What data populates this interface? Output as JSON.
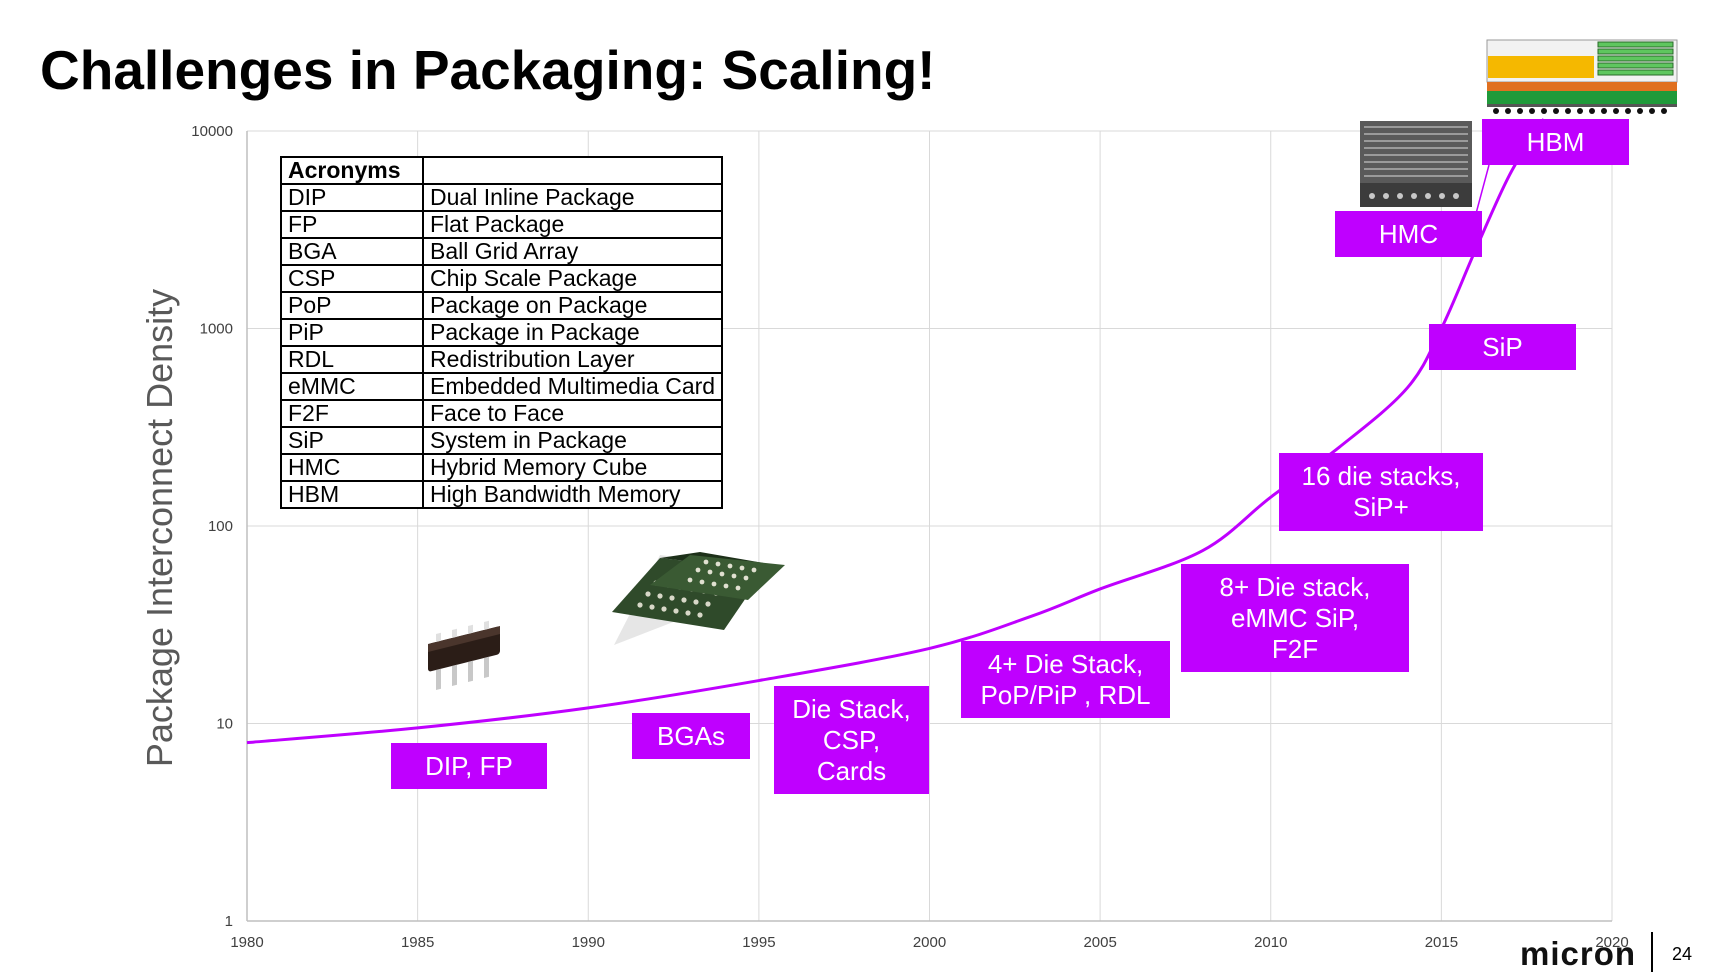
{
  "slide": {
    "title": "Challenges in Packaging: Scaling!",
    "page_number": "24",
    "logo": "micron"
  },
  "chart_data": {
    "type": "line",
    "title": "",
    "xlabel": "",
    "ylabel": "Package Interconnect Density",
    "xlim": [
      1980,
      2020
    ],
    "ylim": [
      1,
      10000
    ],
    "y_scale": "log",
    "grid": true,
    "x_ticks": [
      "1980",
      "1985",
      "1990",
      "1995",
      "2000",
      "2005",
      "2010",
      "2015",
      "2020"
    ],
    "y_ticks": [
      "1",
      "10",
      "100",
      "1000",
      "10000"
    ],
    "series": [
      {
        "color": "#bf00ff",
        "x": [
          1980,
          1985,
          1990,
          1995,
          2000,
          2003,
          2005,
          2008,
          2010,
          2012,
          2014,
          2015,
          2016,
          2017,
          2018
        ],
        "y": [
          8,
          9.5,
          12,
          16.5,
          24,
          35,
          48,
          75,
          140,
          250,
          500,
          1000,
          2500,
          6000,
          14000
        ]
      }
    ],
    "annotations": [
      {
        "text": "DIP, FP",
        "x_anchor": 1984.3
      },
      {
        "text": "BGAs",
        "x_anchor": 1991.5
      },
      {
        "text": "Die Stack,\nCSP,\nCards",
        "x_anchor": 1996.5
      },
      {
        "text": "4+ Die Stack,\nPoP/PiP , RDL",
        "x_anchor": 2002.4
      },
      {
        "text": "8+ Die stack,\neMMC SiP,\nF2F",
        "x_anchor": 2007.9
      },
      {
        "text": "16 die stacks,\nSiP+",
        "x_anchor": 2010.7
      },
      {
        "text": "SiP",
        "x_anchor": 2015.1
      },
      {
        "text": "HMC",
        "x_anchor": 2012.5
      },
      {
        "text": "HBM",
        "x_anchor": 2016.7
      }
    ]
  },
  "acronyms": {
    "header": "Acronyms",
    "rows": [
      {
        "abbr": "DIP",
        "full": "Dual Inline Package"
      },
      {
        "abbr": "FP",
        "full": "Flat Package"
      },
      {
        "abbr": "BGA",
        "full": "Ball Grid Array"
      },
      {
        "abbr": "CSP",
        "full": "Chip Scale Package"
      },
      {
        "abbr": "PoP",
        "full": "Package on Package"
      },
      {
        "abbr": "PiP",
        "full": "Package in Package"
      },
      {
        "abbr": "RDL",
        "full": "Redistribution Layer"
      },
      {
        "abbr": "eMMC",
        "full": "Embedded Multimedia Card"
      },
      {
        "abbr": "F2F",
        "full": "Face to Face"
      },
      {
        "abbr": "SiP",
        "full": "System in Package"
      },
      {
        "abbr": "HMC",
        "full": "Hybrid Memory Cube"
      },
      {
        "abbr": "HBM",
        "full": "High Bandwidth Memory"
      }
    ]
  },
  "colors": {
    "accent": "#bf00ff",
    "grid": "#d9d9d9",
    "axis_text": "#404040"
  },
  "images": [
    "dip-chip-photo",
    "bga-chip-photo",
    "hmc-die-photo",
    "hbm-stack-diagram"
  ]
}
